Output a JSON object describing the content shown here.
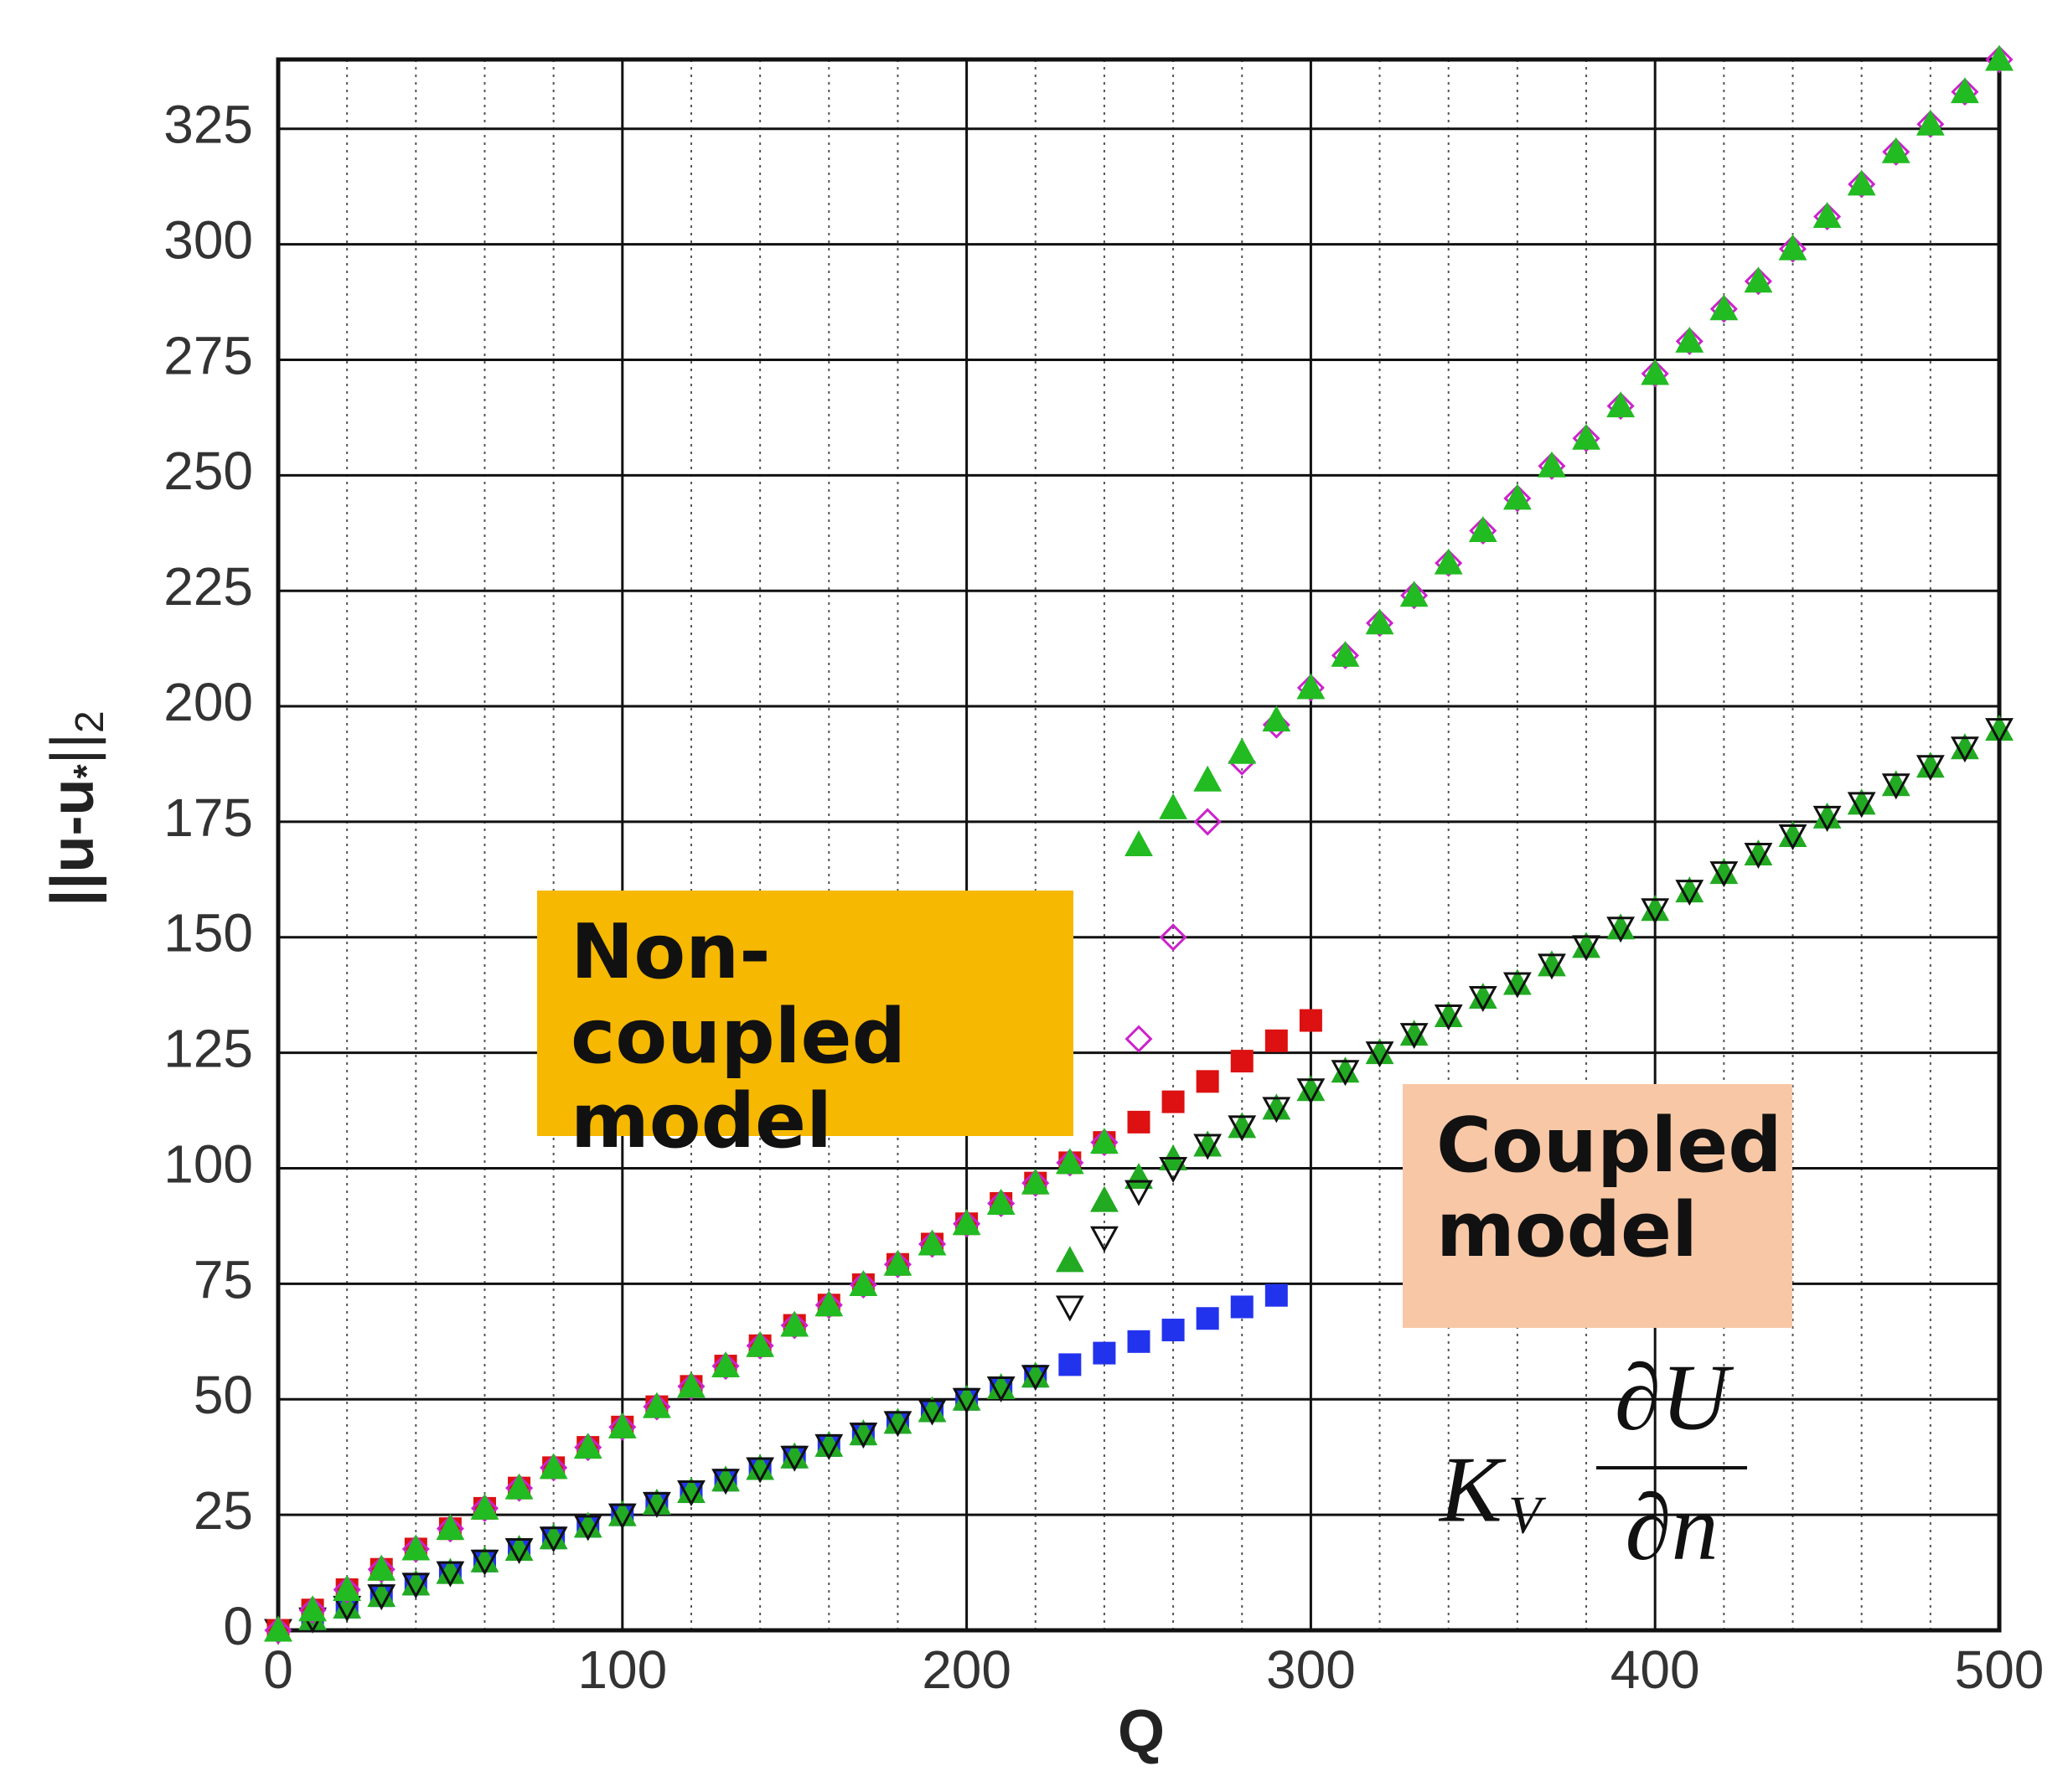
{
  "chart_data": {
    "type": "scatter",
    "xlabel": "Q",
    "ylabel": {
      "main": "||u-u",
      "star": "*",
      "close": "||",
      "sub": "2"
    },
    "xlim": [
      0,
      500
    ],
    "ylim": [
      0,
      340
    ],
    "xticks": [
      0,
      100,
      200,
      300,
      400,
      500
    ],
    "yticks": [
      0,
      25,
      50,
      75,
      100,
      125,
      150,
      175,
      200,
      225,
      250,
      275,
      300,
      325
    ],
    "xminorticks": [
      20,
      40,
      60,
      80,
      120,
      140,
      160,
      180,
      220,
      240,
      260,
      280,
      320,
      340,
      360,
      380,
      420,
      440,
      460,
      480
    ],
    "grid": true,
    "annotations": [
      {
        "text": "Non-coupled model",
        "color": "#f6b800"
      },
      {
        "text": "Coupled model",
        "color": "#f8c8a6"
      }
    ],
    "formula": {
      "coefficient": "K",
      "subscript": "V",
      "numerator": "∂U",
      "denominator": "∂n"
    },
    "series": [
      {
        "color": "#2233ee",
        "marker": "square",
        "filled": true,
        "x": [
          0,
          10,
          20,
          30,
          40,
          50,
          60,
          70,
          80,
          90,
          100,
          110,
          120,
          130,
          140,
          150,
          160,
          170,
          180,
          190,
          200,
          210,
          220,
          230,
          240,
          250,
          260,
          270,
          280,
          290
        ],
        "values": [
          0,
          2.5,
          5,
          7.5,
          10,
          12.5,
          15,
          17.5,
          20,
          22.5,
          25,
          27.5,
          30,
          32.5,
          35,
          37.5,
          40,
          42.5,
          45,
          47.5,
          50,
          52.5,
          55,
          57.5,
          60,
          62.5,
          65,
          67.5,
          70,
          72.5
        ]
      },
      {
        "color": "#22aa22",
        "marker": "triangle",
        "filled": true,
        "x": [
          0,
          10,
          20,
          30,
          40,
          50,
          60,
          70,
          80,
          90,
          100,
          110,
          120,
          130,
          140,
          150,
          160,
          170,
          180,
          190,
          200,
          210,
          220,
          230,
          240,
          250,
          260,
          270,
          280,
          290,
          300,
          310,
          320,
          330,
          340,
          350,
          360,
          370,
          380,
          390,
          400,
          410,
          420,
          430,
          440,
          450,
          460,
          470,
          480,
          490,
          500
        ],
        "values": [
          0,
          2.5,
          5,
          7.5,
          10,
          12.5,
          15,
          17.5,
          20,
          22.5,
          25,
          27.5,
          30,
          32.5,
          35,
          37.5,
          40,
          42.5,
          45,
          47.5,
          50,
          52.5,
          55,
          80,
          93,
          98,
          102,
          105,
          109,
          113,
          117,
          121,
          125,
          129,
          133,
          137,
          140,
          144,
          148,
          152,
          156,
          160,
          164,
          168,
          172,
          176,
          179,
          183,
          187,
          191,
          195
        ]
      },
      {
        "color": "#111111",
        "marker": "triangle-down",
        "filled": false,
        "x": [
          0,
          10,
          20,
          30,
          40,
          50,
          60,
          70,
          80,
          90,
          100,
          110,
          120,
          130,
          140,
          150,
          160,
          170,
          180,
          190,
          200,
          210,
          220,
          230,
          240,
          250,
          260,
          270,
          280,
          290,
          300,
          310,
          320,
          330,
          340,
          350,
          360,
          370,
          380,
          390,
          400,
          410,
          420,
          430,
          440,
          450,
          460,
          470,
          480,
          490,
          500
        ],
        "values": [
          0,
          2.5,
          5,
          7.5,
          10,
          12.5,
          15,
          17.5,
          20,
          22.5,
          25,
          27.5,
          30,
          32.5,
          35,
          37.5,
          40,
          42.5,
          45,
          47.5,
          50,
          52.5,
          55,
          70,
          85,
          95,
          100,
          105,
          109,
          113,
          117,
          121,
          125,
          129,
          133,
          137,
          140,
          144,
          148,
          152,
          156,
          160,
          164,
          168,
          172,
          176,
          179,
          183,
          187,
          191,
          195
        ]
      },
      {
        "color": "#dd1111",
        "marker": "square",
        "filled": true,
        "x": [
          0,
          10,
          20,
          30,
          40,
          50,
          60,
          70,
          80,
          90,
          100,
          110,
          120,
          130,
          140,
          150,
          160,
          170,
          180,
          190,
          200,
          210,
          220,
          230,
          240,
          250,
          260,
          270,
          280,
          290,
          300
        ],
        "values": [
          0,
          4.4,
          8.8,
          13.2,
          17.6,
          22,
          26.4,
          30.8,
          35.2,
          39.6,
          44,
          48.4,
          52.8,
          57.2,
          61.6,
          66,
          70.4,
          74.8,
          79.2,
          83.6,
          88,
          92.4,
          96.8,
          101.2,
          105.6,
          110,
          114.4,
          118.8,
          123.2,
          127.6,
          132
        ]
      },
      {
        "color": "#cc22cc",
        "marker": "diamond",
        "filled": false,
        "x": [
          0,
          10,
          20,
          30,
          40,
          50,
          60,
          70,
          80,
          90,
          100,
          110,
          120,
          130,
          140,
          150,
          160,
          170,
          180,
          190,
          200,
          210,
          220,
          230,
          240,
          250,
          260,
          270,
          280,
          290,
          300,
          310,
          320,
          330,
          340,
          350,
          360,
          370,
          380,
          390,
          400,
          410,
          420,
          430,
          440,
          450,
          460,
          470,
          480,
          490,
          500
        ],
        "values": [
          0,
          4.4,
          8.8,
          13.2,
          17.6,
          22,
          26.4,
          30.8,
          35.2,
          39.6,
          44,
          48.4,
          52.8,
          57.2,
          61.6,
          66,
          70.4,
          74.8,
          79.2,
          83.6,
          88,
          92.4,
          96.8,
          101.2,
          105.6,
          128,
          150,
          175,
          188,
          196,
          204,
          211,
          218,
          224,
          231,
          238,
          245,
          252,
          258,
          265,
          272,
          279,
          286,
          292,
          299,
          306,
          313,
          320,
          326,
          333,
          340
        ]
      },
      {
        "color": "#22bb22",
        "marker": "triangle",
        "filled": true,
        "x": [
          0,
          10,
          20,
          30,
          40,
          50,
          60,
          70,
          80,
          90,
          100,
          110,
          120,
          130,
          140,
          150,
          160,
          170,
          180,
          190,
          200,
          210,
          220,
          230,
          240,
          250,
          260,
          270,
          280,
          290,
          300,
          310,
          320,
          330,
          340,
          350,
          360,
          370,
          380,
          390,
          400,
          410,
          420,
          430,
          440,
          450,
          460,
          470,
          480,
          490,
          500
        ],
        "values": [
          0,
          4.4,
          8.8,
          13.2,
          17.6,
          22,
          26.4,
          30.8,
          35.2,
          39.6,
          44,
          48.4,
          52.8,
          57.2,
          61.6,
          66,
          70.4,
          74.8,
          79.2,
          83.6,
          88,
          92.4,
          96.8,
          101.2,
          105.6,
          170,
          178,
          184,
          190,
          197,
          204,
          211,
          218,
          224,
          231,
          238,
          245,
          252,
          258,
          265,
          272,
          279,
          286,
          292,
          299,
          306,
          313,
          320,
          326,
          333,
          340
        ]
      }
    ]
  }
}
